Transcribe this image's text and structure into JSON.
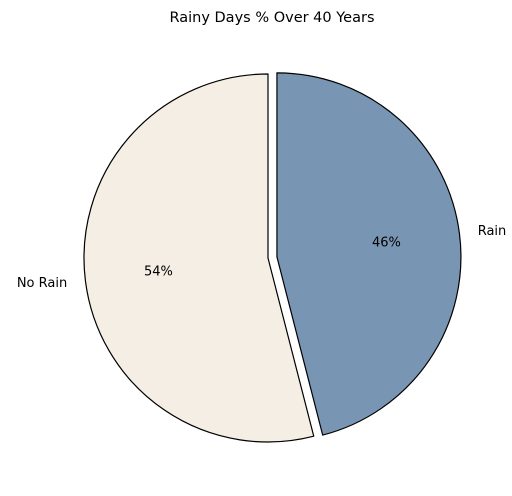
{
  "chart_data": {
    "type": "pie",
    "title": "Rainy Days % Over 40 Years",
    "start_angle_deg": 90,
    "direction": "clockwise",
    "slices": [
      {
        "label": "Rain",
        "value": 46,
        "pct_label": "46%",
        "color": "#7896b3",
        "explode": true
      },
      {
        "label": "No Rain",
        "value": 54,
        "pct_label": "54%",
        "color": "#f4eee4",
        "explode": false
      }
    ],
    "edge_color": "#000000",
    "legend": "none"
  }
}
